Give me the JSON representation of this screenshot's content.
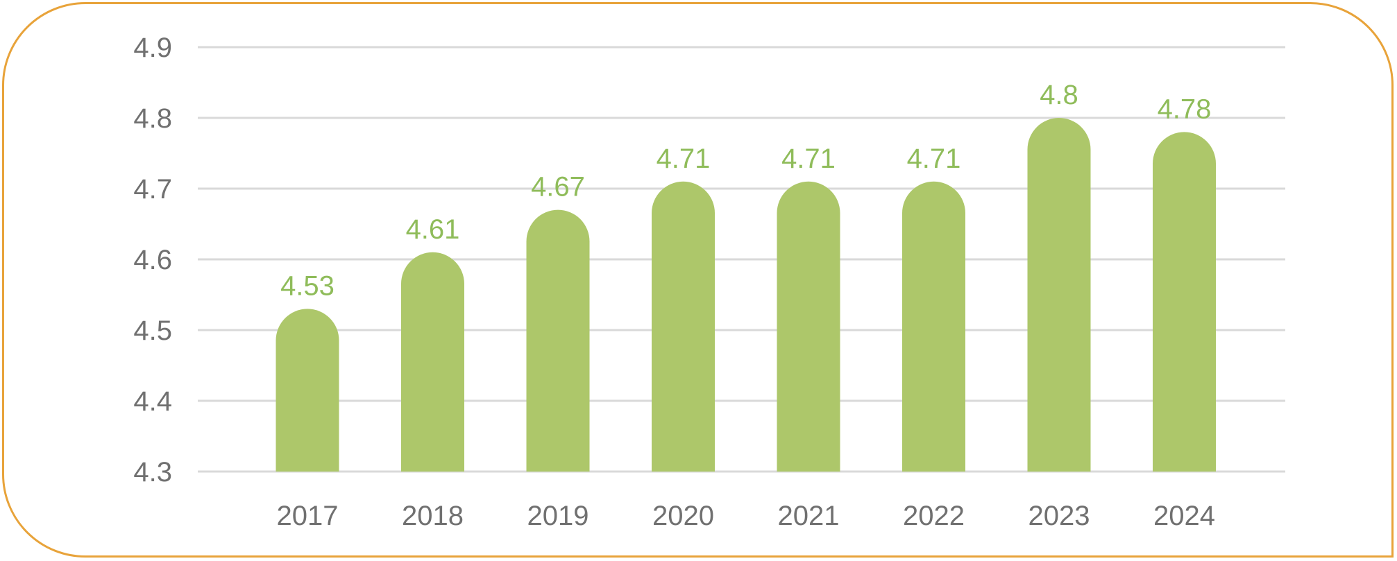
{
  "chart_data": {
    "type": "bar",
    "title": "",
    "xlabel": "",
    "ylabel": "",
    "categories": [
      "2017",
      "2018",
      "2019",
      "2020",
      "2021",
      "2022",
      "2023",
      "2024"
    ],
    "values": [
      4.53,
      4.61,
      4.67,
      4.71,
      4.71,
      4.71,
      4.8,
      4.78
    ],
    "data_labels": [
      "4.53",
      "4.61",
      "4.67",
      "4.71",
      "4.71",
      "4.71",
      "4.8",
      "4.78"
    ],
    "ylim": [
      4.3,
      4.9
    ],
    "y_ticks": [
      "4.3",
      "4.4",
      "4.5",
      "4.6",
      "4.7",
      "4.8",
      "4.9"
    ],
    "grid": true,
    "legend": "none",
    "bar_shape": "rounded-top",
    "colors": {
      "bar": "#adc76a",
      "data_label": "#8fbc5a",
      "grid": "#d9d9d9",
      "tick_label": "#707070",
      "frame_border": "#e8a33a"
    }
  }
}
